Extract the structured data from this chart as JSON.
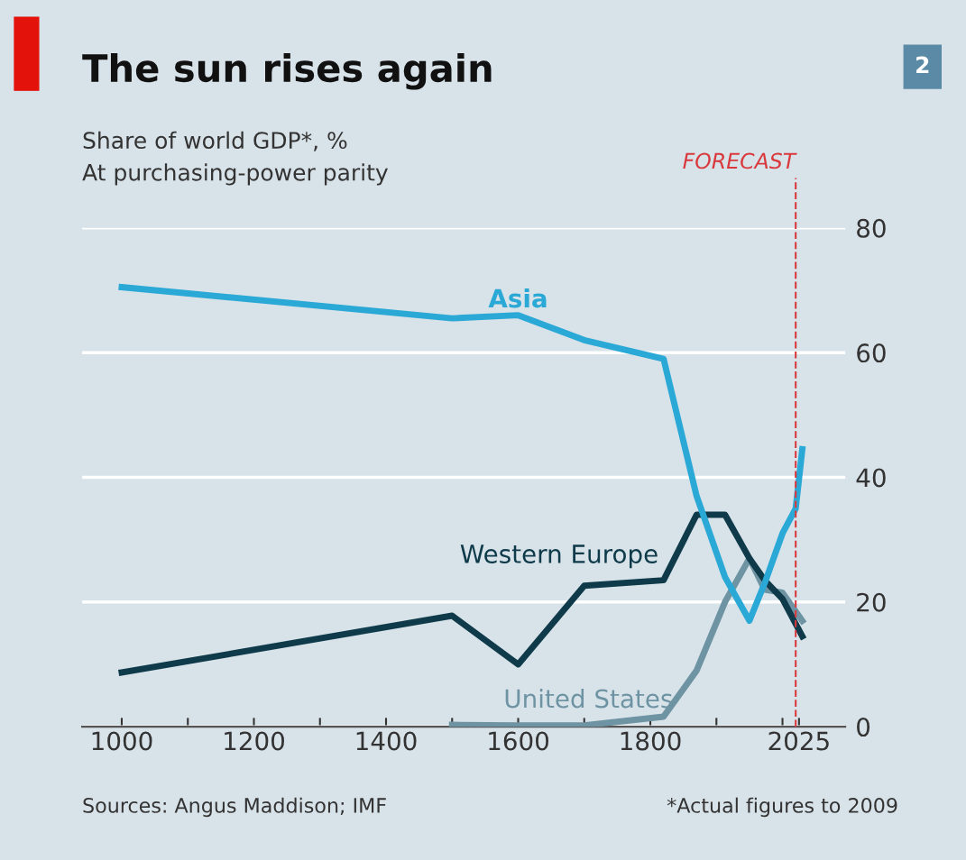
{
  "chart_data": {
    "type": "line",
    "title": "The sun rises again",
    "subtitle": "Share of world GDP*, %\nAt purchasing-power parity",
    "series": [
      {
        "name": "Asia",
        "color": "#2aa8d6",
        "x": [
          1000,
          1500,
          1600,
          1700,
          1820,
          1870,
          1913,
          1950,
          1973,
          2000,
          2020,
          2030
        ],
        "values": [
          70.5,
          65.5,
          66,
          62,
          59,
          37,
          24,
          17,
          23,
          31,
          35,
          44.5
        ]
      },
      {
        "name": "Western Europe",
        "color": "#0e3a4a",
        "x": [
          1000,
          1500,
          1600,
          1700,
          1820,
          1870,
          1913,
          1950,
          1973,
          2000,
          2030
        ],
        "values": [
          8.7,
          17.8,
          10,
          22.6,
          23.5,
          34,
          34,
          27,
          23.5,
          20.5,
          14.5
        ]
      },
      {
        "name": "United States",
        "color": "#6e94a3",
        "x": [
          1500,
          1600,
          1700,
          1820,
          1870,
          1913,
          1950,
          1973,
          2000,
          2030
        ],
        "values": [
          0.3,
          0.2,
          0.2,
          1.6,
          9,
          20,
          27,
          22,
          21.5,
          17
        ]
      }
    ],
    "xlim": [
      940,
      2095
    ],
    "ylim": [
      0,
      80
    ],
    "xticks": [
      1000,
      {
        "value": 1100,
        "label": null
      },
      1200,
      {
        "value": 1300,
        "label": null
      },
      1400,
      {
        "value": 1500,
        "label": null
      },
      1600,
      {
        "value": 1700,
        "label": null
      },
      1800,
      {
        "value": 1900,
        "label": null
      },
      {
        "value": 2000,
        "label": null
      },
      2025
    ],
    "yticks": [
      0,
      20,
      40,
      60,
      80
    ],
    "grid": "y",
    "legend": false,
    "marker": "none",
    "line_style": "solid",
    "ref_lines": [
      {
        "axis": "x",
        "value": 2020,
        "label": "FORECAST",
        "color": "#d9393c",
        "line_style": "dashed"
      }
    ],
    "annotations": [
      "2",
      "Sources: Angus Maddison; IMF",
      "*Actual figures to 2009"
    ]
  }
}
